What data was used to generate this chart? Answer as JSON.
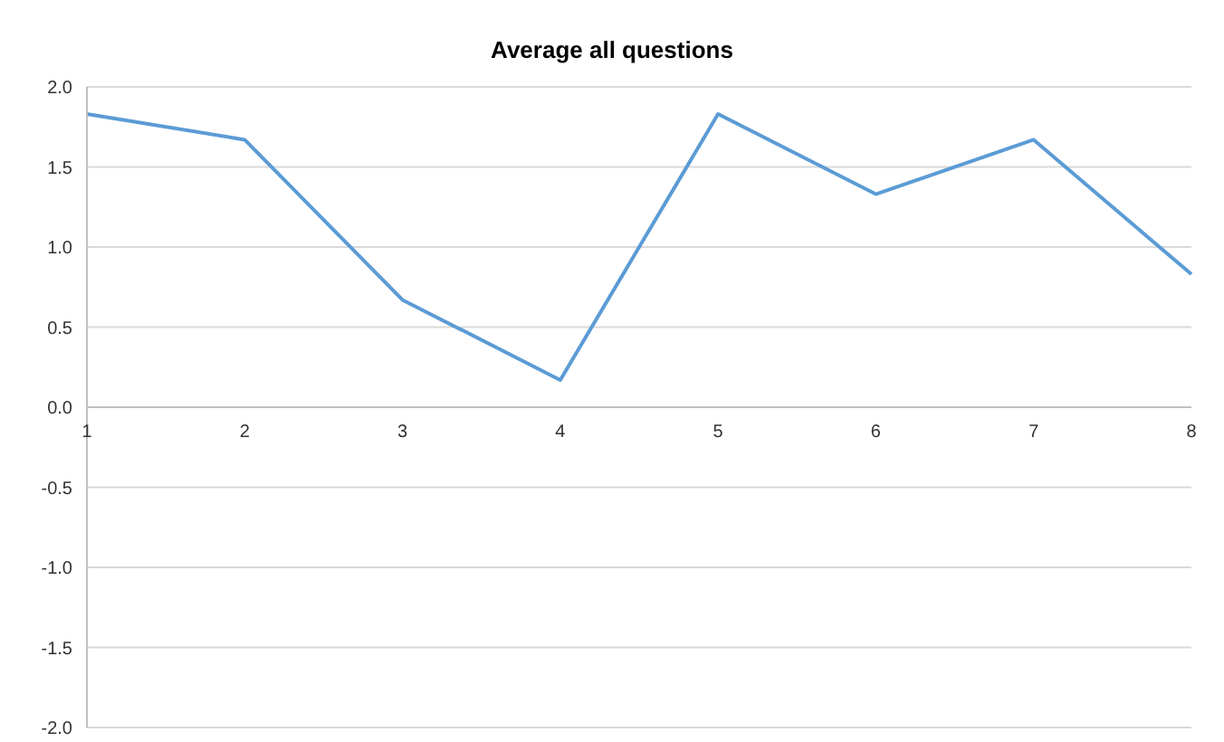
{
  "chart_data": {
    "type": "line",
    "title": "Average all questions",
    "categories": [
      "1",
      "2",
      "3",
      "4",
      "5",
      "6",
      "7",
      "8"
    ],
    "series": [
      {
        "color": "#5b9bd5",
        "values": [
          1.83,
          1.67,
          0.67,
          0.17,
          1.83,
          1.33,
          1.67,
          0.83
        ]
      }
    ],
    "ylim": [
      -2,
      2
    ],
    "yticks": [
      {
        "value": -2,
        "label": "-2.0"
      },
      {
        "value": -1.5,
        "label": "-1.5"
      },
      {
        "value": -1,
        "label": "-1.0"
      },
      {
        "value": -0.5,
        "label": "-0.5"
      },
      {
        "value": 0,
        "label": "0.0"
      },
      {
        "value": 0.5,
        "label": "0.5"
      },
      {
        "value": 1,
        "label": "1.0"
      },
      {
        "value": 1.5,
        "label": "1.5"
      },
      {
        "value": 2,
        "label": "2.0"
      }
    ],
    "grid": "y",
    "legend": false,
    "marker": "none",
    "line_style": "solid"
  }
}
